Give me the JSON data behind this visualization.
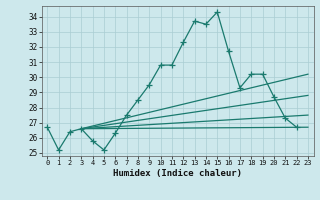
{
  "background_color": "#cde8ec",
  "grid_color": "#aacdd3",
  "line_color": "#1a7a6e",
  "xlabel": "Humidex (Indice chaleur)",
  "ylim": [
    24.8,
    34.7
  ],
  "xlim": [
    -0.5,
    23.5
  ],
  "yticks": [
    25,
    26,
    27,
    28,
    29,
    30,
    31,
    32,
    33,
    34
  ],
  "xticks": [
    0,
    1,
    2,
    3,
    4,
    5,
    6,
    7,
    8,
    9,
    10,
    11,
    12,
    13,
    14,
    15,
    16,
    17,
    18,
    19,
    20,
    21,
    22,
    23
  ],
  "main_series_x": [
    0,
    1,
    2,
    3,
    4,
    5,
    6,
    7,
    8,
    9,
    10,
    11,
    12,
    13,
    14,
    15,
    16,
    17,
    18,
    19,
    20,
    21,
    22
  ],
  "main_series_y": [
    26.7,
    25.2,
    26.4,
    26.6,
    25.8,
    25.2,
    26.3,
    27.5,
    28.5,
    29.5,
    30.8,
    30.8,
    32.3,
    33.7,
    33.5,
    34.3,
    31.7,
    29.3,
    30.2,
    30.2,
    28.7,
    27.3,
    26.7
  ],
  "trend_lines": [
    {
      "x": [
        3,
        23
      ],
      "y": [
        26.6,
        26.7
      ]
    },
    {
      "x": [
        3,
        23
      ],
      "y": [
        26.6,
        27.5
      ]
    },
    {
      "x": [
        3,
        23
      ],
      "y": [
        26.6,
        28.8
      ]
    },
    {
      "x": [
        3,
        23
      ],
      "y": [
        26.6,
        30.2
      ]
    }
  ]
}
